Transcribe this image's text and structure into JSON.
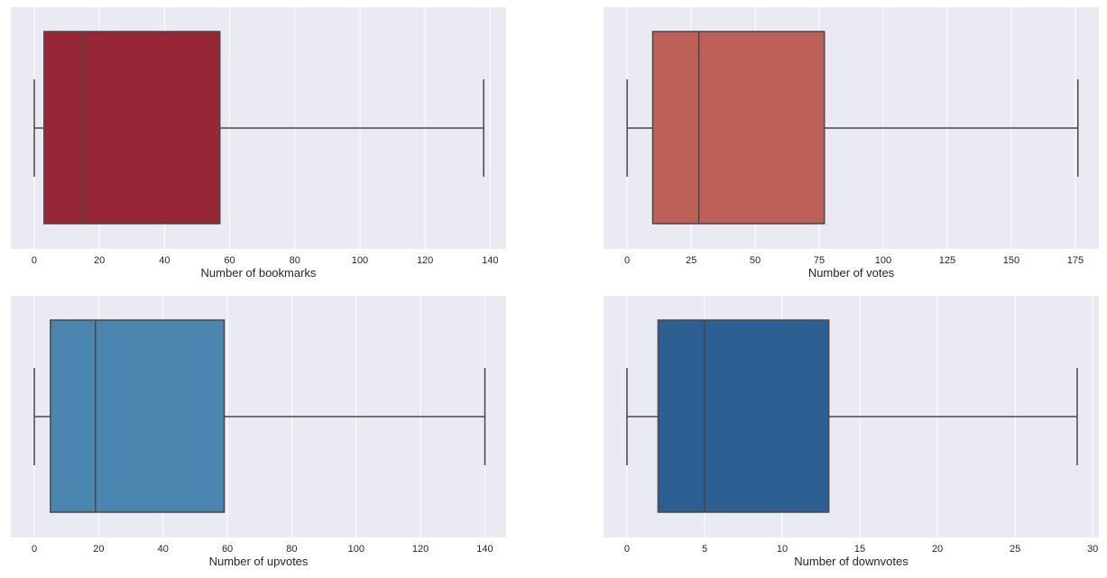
{
  "chart_data": [
    {
      "type": "box",
      "xlabel": "Number of bookmarks",
      "xlim": [
        -7.2,
        144.9
      ],
      "ticks": [
        0,
        20,
        40,
        60,
        80,
        100,
        120,
        140
      ],
      "stats": {
        "whislo": 0,
        "q1": 3,
        "median": 15,
        "q3": 57,
        "whishi": 138
      },
      "color": "#962737",
      "grid": true
    },
    {
      "type": "box",
      "xlabel": "Number of votes",
      "xlim": [
        -9.2,
        184.2
      ],
      "ticks": [
        0,
        25,
        50,
        75,
        100,
        125,
        150,
        175
      ],
      "stats": {
        "whislo": 0,
        "q1": 10,
        "median": 28,
        "q3": 77,
        "whishi": 176
      },
      "color": "#bd6058",
      "grid": true
    },
    {
      "type": "box",
      "xlabel": "Number of upvotes",
      "xlim": [
        -7.3,
        146.6
      ],
      "ticks": [
        0,
        20,
        40,
        60,
        80,
        100,
        120,
        140
      ],
      "stats": {
        "whislo": 0,
        "q1": 5,
        "median": 19,
        "q3": 59,
        "whishi": 140
      },
      "color": "#4b86b0",
      "grid": true
    },
    {
      "type": "box",
      "xlabel": "Number of downvotes",
      "xlim": [
        -1.51,
        30.4
      ],
      "ticks": [
        0,
        5,
        10,
        15,
        20,
        25,
        30
      ],
      "stats": {
        "whislo": 0,
        "q1": 2,
        "median": 5,
        "q3": 13,
        "whishi": 29
      },
      "color": "#2e5f92",
      "grid": true
    }
  ]
}
